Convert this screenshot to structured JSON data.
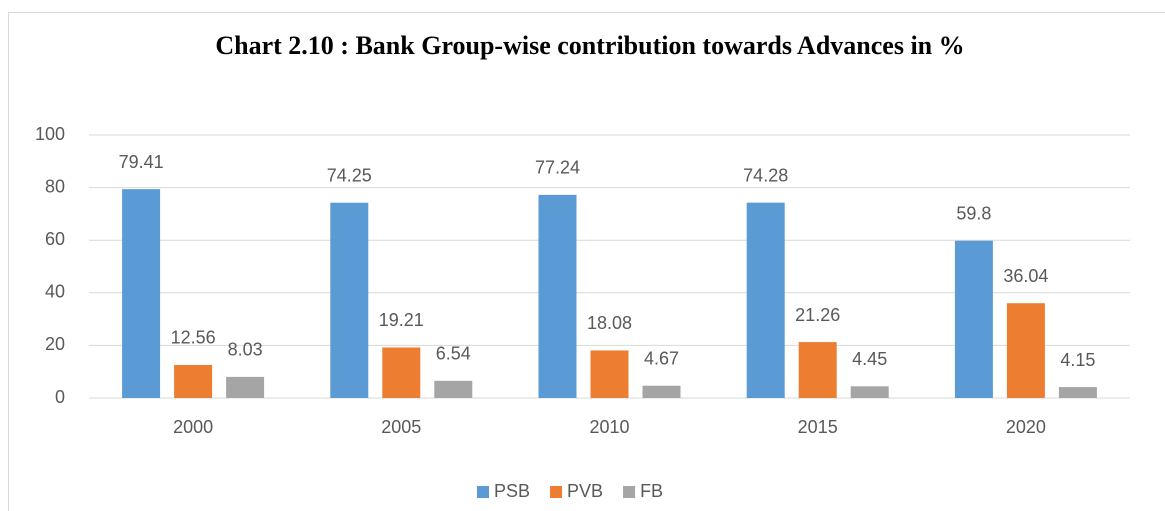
{
  "chart_data": {
    "type": "bar",
    "title": "Chart 2.10 : Bank Group-wise contribution towards Advances in %",
    "categories": [
      "2000",
      "2005",
      "2010",
      "2015",
      "2020"
    ],
    "series": [
      {
        "name": "PSB",
        "color": "#5b9bd5",
        "values": [
          79.41,
          74.25,
          77.24,
          74.28,
          59.8
        ]
      },
      {
        "name": "PVB",
        "color": "#ed7d31",
        "values": [
          12.56,
          19.21,
          18.08,
          21.26,
          36.04
        ]
      },
      {
        "name": "FB",
        "color": "#a5a5a5",
        "values": [
          8.03,
          6.54,
          4.67,
          4.45,
          4.15
        ]
      }
    ],
    "ylim": [
      0,
      100
    ],
    "yticks": [
      0,
      20,
      40,
      60,
      80,
      100
    ],
    "grid": true,
    "legend": "bottom"
  }
}
